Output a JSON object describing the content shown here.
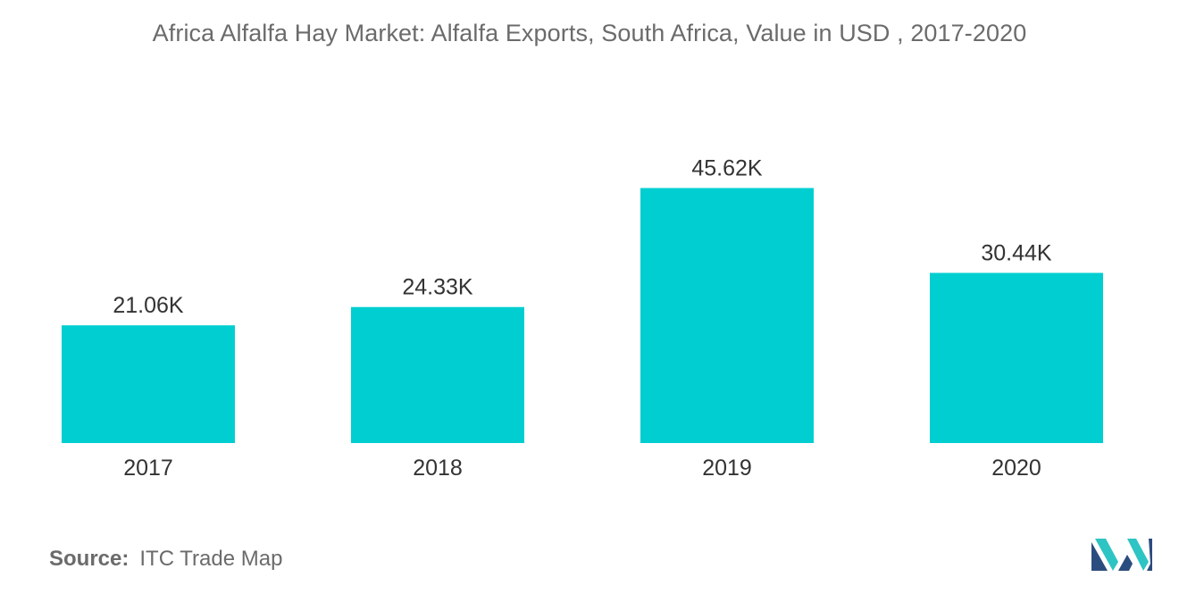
{
  "title": "Africa Alfalfa Hay Market: Alfalfa Exports, South Africa, Value in USD , 2017-2020",
  "source_label": "Source:",
  "source_text": "ITC Trade Map",
  "logo_icon": "mordor-intelligence-logo-icon",
  "colors": {
    "bar": "#00CED1",
    "text": "#333333",
    "muted": "#6b6b6b",
    "logo_dark": "#2B4C7E",
    "logo_light": "#2EC4C4"
  },
  "chart_data": {
    "type": "bar",
    "categories": [
      "2017",
      "2018",
      "2019",
      "2020"
    ],
    "values": [
      21.06,
      24.33,
      45.62,
      30.44
    ],
    "data_labels": [
      "21.06K",
      "24.33K",
      "45.62K",
      "30.44K"
    ],
    "ylim": [
      0,
      50
    ],
    "grid": false,
    "legend": "none"
  }
}
